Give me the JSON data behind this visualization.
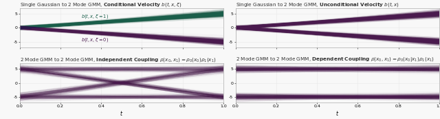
{
  "ylim": [
    -7,
    7
  ],
  "xlim": [
    0.0,
    1.0
  ],
  "yticks": [
    -5,
    0,
    5
  ],
  "xticks": [
    0.0,
    0.2,
    0.4,
    0.6,
    0.8,
    1.0
  ],
  "n_lines": 800,
  "color_teal": "#1a5e4a",
  "color_purple": "#4a1a4e",
  "alpha_line": 0.06,
  "linewidth": 0.4,
  "figsize": [
    6.4,
    1.73
  ],
  "dpi": 100,
  "title_fontsize": 5.2,
  "tick_fontsize": 4.5,
  "label_fontsize": 5.5,
  "annotation_fontsize": 4.8,
  "background_color": "#f8f8f8",
  "grid_color": "#e8e8e8",
  "source_mean": 0.0,
  "source_std": 0.3,
  "gmm_mode1": 5.0,
  "gmm_mode2": -5.0,
  "gmm_std": 0.6
}
